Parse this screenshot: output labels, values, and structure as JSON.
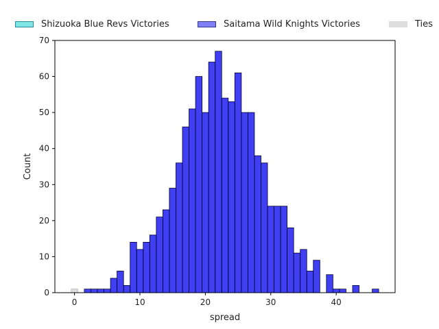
{
  "chart_data": {
    "type": "bar",
    "title": "",
    "xlabel": "spread",
    "ylabel": "Count",
    "xlim": [
      -3,
      49
    ],
    "ylim": [
      0,
      70
    ],
    "xticks": [
      0,
      10,
      20,
      30,
      40
    ],
    "yticks": [
      0,
      10,
      20,
      30,
      40,
      50,
      60,
      70
    ],
    "bin_width": 1,
    "grid": false,
    "legend_position": "top",
    "series": [
      {
        "name": "Shizuoka Blue Revs Victories",
        "color": "#00cccc",
        "bins": []
      },
      {
        "name": "Saitama Wild Knights Victories",
        "color": "#0000ee",
        "bins": [
          {
            "x": 1.5,
            "count": 1
          },
          {
            "x": 2.5,
            "count": 1
          },
          {
            "x": 3.5,
            "count": 1
          },
          {
            "x": 4.5,
            "count": 1
          },
          {
            "x": 5.5,
            "count": 4
          },
          {
            "x": 6.5,
            "count": 6
          },
          {
            "x": 7.5,
            "count": 2
          },
          {
            "x": 8.5,
            "count": 14
          },
          {
            "x": 9.5,
            "count": 12
          },
          {
            "x": 10.5,
            "count": 14
          },
          {
            "x": 11.5,
            "count": 16
          },
          {
            "x": 12.5,
            "count": 21
          },
          {
            "x": 13.5,
            "count": 23
          },
          {
            "x": 14.5,
            "count": 29
          },
          {
            "x": 15.5,
            "count": 36
          },
          {
            "x": 16.5,
            "count": 46
          },
          {
            "x": 17.5,
            "count": 51
          },
          {
            "x": 18.5,
            "count": 60
          },
          {
            "x": 19.5,
            "count": 50
          },
          {
            "x": 20.5,
            "count": 64
          },
          {
            "x": 21.5,
            "count": 67
          },
          {
            "x": 22.5,
            "count": 54
          },
          {
            "x": 23.5,
            "count": 53
          },
          {
            "x": 24.5,
            "count": 61
          },
          {
            "x": 25.5,
            "count": 50
          },
          {
            "x": 26.5,
            "count": 50
          },
          {
            "x": 27.5,
            "count": 38
          },
          {
            "x": 28.5,
            "count": 36
          },
          {
            "x": 29.5,
            "count": 24
          },
          {
            "x": 30.5,
            "count": 24
          },
          {
            "x": 31.5,
            "count": 24
          },
          {
            "x": 32.5,
            "count": 18
          },
          {
            "x": 33.5,
            "count": 11
          },
          {
            "x": 34.5,
            "count": 12
          },
          {
            "x": 35.5,
            "count": 6
          },
          {
            "x": 36.5,
            "count": 9
          },
          {
            "x": 38.5,
            "count": 5
          },
          {
            "x": 39.5,
            "count": 1
          },
          {
            "x": 40.5,
            "count": 1
          },
          {
            "x": 42.5,
            "count": 2
          },
          {
            "x": 45.5,
            "count": 1
          }
        ]
      },
      {
        "name": "Ties",
        "color": "#d3d3d3",
        "bins": [
          {
            "x": -0.5,
            "count": 1
          }
        ]
      }
    ]
  }
}
